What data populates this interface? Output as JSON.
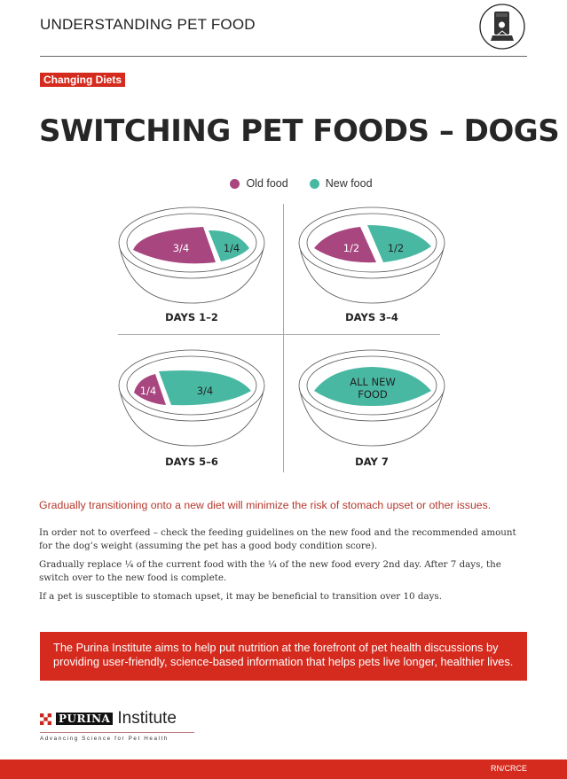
{
  "header": {
    "title": "UNDERSTANDING PET FOOD",
    "icon": "pet-food-bag-icon"
  },
  "tag": "Changing Diets",
  "title": "SWITCHING PET FOODS – DOGS",
  "legend": [
    {
      "label": "Old food",
      "color": "#a8467f"
    },
    {
      "label": "New food",
      "color": "#49b8a3"
    }
  ],
  "stages": [
    {
      "label": "DAYS 1–2",
      "old": "3/4",
      "new": "1/4",
      "old_fraction": 0.75,
      "new_fraction": 0.25
    },
    {
      "label": "DAYS 3–4",
      "old": "1/2",
      "new": "1/2",
      "old_fraction": 0.5,
      "new_fraction": 0.5
    },
    {
      "label": "DAYS 5–6",
      "old": "1/4",
      "new": "3/4",
      "old_fraction": 0.25,
      "new_fraction": 0.75
    },
    {
      "label": "DAY 7",
      "new_line1": "ALL NEW",
      "new_line2": "FOOD",
      "old_fraction": 0,
      "new_fraction": 1
    }
  ],
  "lead": "Gradually transitioning onto a new diet will minimize the risk of stomach upset or other issues.",
  "body": [
    "In order not to overfeed – check the feeding guidelines on the new food and the recommended amount for the dog’s weight (assuming the pet has a good body condition score).",
    "Gradually replace ¼ of the current food with the ¼ of the new food every 2nd day. After 7 days, the switch over to the new food is complete.",
    "If a pet is susceptible to stomach upset, it may be beneficial to transition over 10 days."
  ],
  "banner": "The Purina Institute aims to help put nutrition at the forefront of pet health discussions by providing user-friendly, science-based information that helps pets live longer, healthier lives.",
  "logo": {
    "brand": "PURINA",
    "name": "Institute",
    "tagline": "Advancing Science for Pet Health"
  },
  "footer": {
    "code": "RN/CRCE"
  },
  "colors": {
    "accent": "#d52b1e",
    "old_food": "#a8467f",
    "new_food": "#49b8a3"
  }
}
